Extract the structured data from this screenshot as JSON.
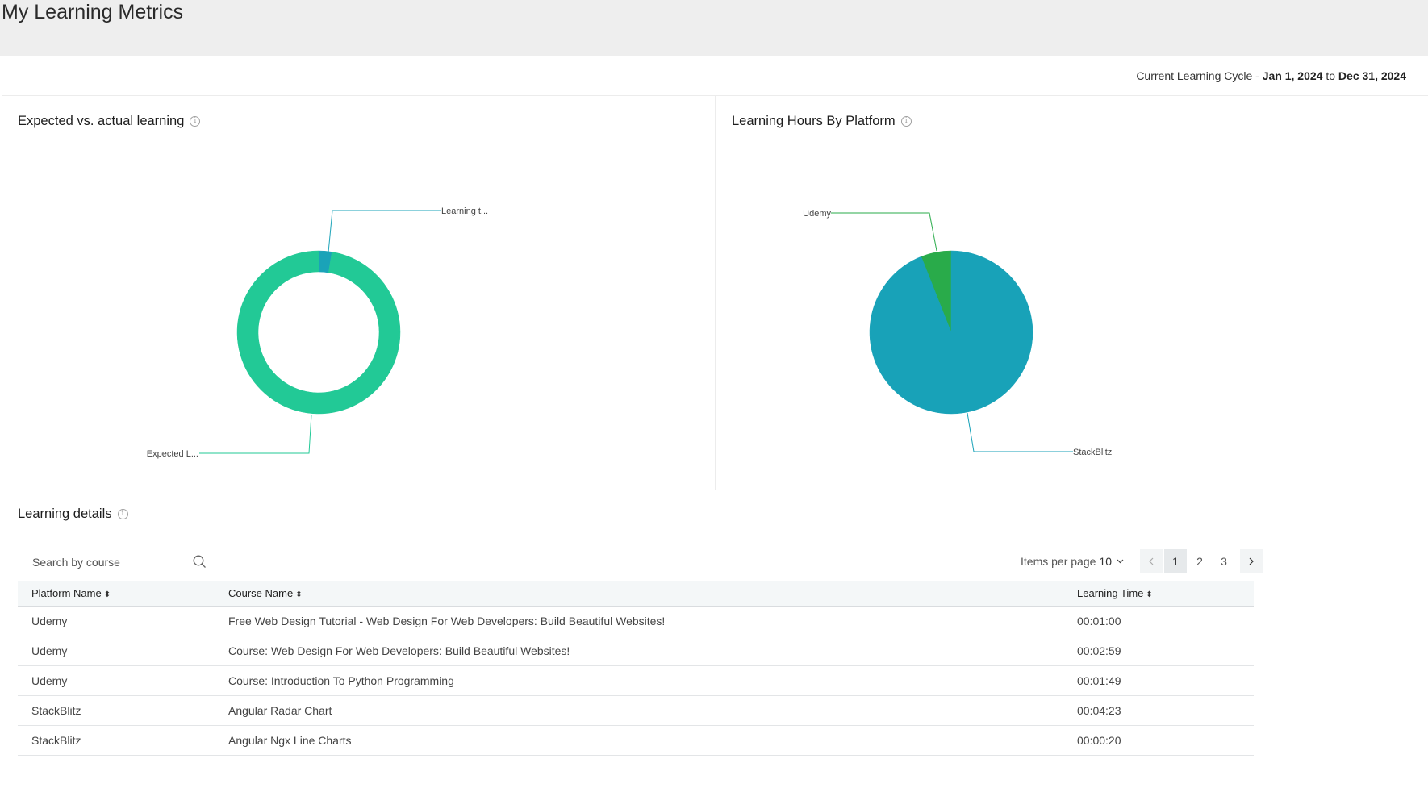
{
  "page": {
    "title": "My Learning Metrics"
  },
  "cycle": {
    "prefix": "Current Learning Cycle - ",
    "start": "Jan 1, 2024",
    "separator": " to ",
    "end": "Dec 31, 2024"
  },
  "charts": {
    "expected": {
      "title": "Expected vs. actual learning"
    },
    "platform": {
      "title": "Learning Hours By Platform"
    }
  },
  "chart_data": [
    {
      "type": "pie",
      "variant": "donut",
      "title": "Expected vs. actual learning",
      "slices": [
        {
          "label": "Learning t...",
          "value": 2.6,
          "color": "#1aa3b8"
        },
        {
          "label": "Expected L...",
          "value": 97.4,
          "color": "#22c996"
        }
      ]
    },
    {
      "type": "pie",
      "title": "Learning Hours By Platform",
      "slices": [
        {
          "label": "Udemy",
          "value": 6,
          "color": "#29ab4a"
        },
        {
          "label": "StackBlitz",
          "value": 94,
          "color": "#18a2b8"
        }
      ]
    }
  ],
  "details": {
    "title": "Learning details",
    "search_placeholder": "Search by course",
    "items_per_page_label": "Items per page",
    "items_per_page_value": "10",
    "pages": [
      "1",
      "2",
      "3"
    ],
    "active_page": "1",
    "columns": [
      "Platform Name",
      "Course Name",
      "Learning Time"
    ],
    "rows": [
      {
        "platform": "Udemy",
        "course": "Free Web Design Tutorial - Web Design For Web Developers: Build Beautiful Websites!",
        "time": "00:01:00"
      },
      {
        "platform": "Udemy",
        "course": "Course: Web Design For Web Developers: Build Beautiful Websites!",
        "time": "00:02:59"
      },
      {
        "platform": "Udemy",
        "course": "Course: Introduction To Python Programming",
        "time": "00:01:49"
      },
      {
        "platform": "StackBlitz",
        "course": "Angular Radar Chart",
        "time": "00:04:23"
      },
      {
        "platform": "StackBlitz",
        "course": "Angular Ngx Line Charts",
        "time": "00:00:20"
      }
    ]
  }
}
